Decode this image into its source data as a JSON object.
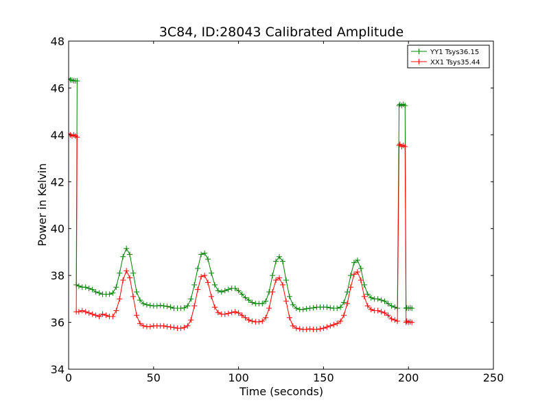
{
  "chart_data": {
    "type": "line",
    "title": "3C84, ID:28043 Calibrated Amplitude",
    "xlabel": "Time (seconds)",
    "ylabel": "Power in Kelvin",
    "xlim": [
      0,
      250
    ],
    "ylim": [
      34,
      48
    ],
    "xticks": [
      0,
      50,
      100,
      150,
      200,
      250
    ],
    "yticks": [
      34,
      36,
      38,
      40,
      42,
      44,
      46,
      48
    ],
    "grid": false,
    "legend_position": "top-right",
    "marker": "+",
    "series": [
      {
        "name": "YY1 Tsys36.15",
        "color": "#008000",
        "points": [
          [
            0,
            46.4
          ],
          [
            1,
            46.35
          ],
          [
            2,
            46.33
          ],
          [
            3,
            46.31
          ],
          [
            4,
            46.3
          ],
          [
            5,
            46.3
          ],
          [
            4.5,
            37.6
          ],
          [
            6,
            37.55
          ],
          [
            8,
            37.5
          ],
          [
            10,
            37.5
          ],
          [
            12,
            37.45
          ],
          [
            14,
            37.4
          ],
          [
            16,
            37.3
          ],
          [
            18,
            37.25
          ],
          [
            20,
            37.2
          ],
          [
            22,
            37.2
          ],
          [
            24,
            37.2
          ],
          [
            26,
            37.25
          ],
          [
            28,
            37.5
          ],
          [
            30,
            38.1
          ],
          [
            32,
            38.8
          ],
          [
            34,
            39.15
          ],
          [
            36,
            38.9
          ],
          [
            38,
            38.1
          ],
          [
            40,
            37.3
          ],
          [
            42,
            36.95
          ],
          [
            44,
            36.8
          ],
          [
            46,
            36.75
          ],
          [
            48,
            36.72
          ],
          [
            50,
            36.7
          ],
          [
            52,
            36.7
          ],
          [
            54,
            36.72
          ],
          [
            56,
            36.7
          ],
          [
            58,
            36.68
          ],
          [
            60,
            36.65
          ],
          [
            62,
            36.6
          ],
          [
            64,
            36.6
          ],
          [
            66,
            36.6
          ],
          [
            68,
            36.62
          ],
          [
            70,
            36.7
          ],
          [
            72,
            37.0
          ],
          [
            74,
            37.6
          ],
          [
            76,
            38.3
          ],
          [
            78,
            38.9
          ],
          [
            80,
            38.95
          ],
          [
            82,
            38.7
          ],
          [
            84,
            38.1
          ],
          [
            86,
            37.6
          ],
          [
            88,
            37.35
          ],
          [
            90,
            37.3
          ],
          [
            92,
            37.35
          ],
          [
            94,
            37.4
          ],
          [
            96,
            37.45
          ],
          [
            98,
            37.45
          ],
          [
            100,
            37.35
          ],
          [
            102,
            37.2
          ],
          [
            104,
            37.05
          ],
          [
            106,
            36.95
          ],
          [
            108,
            36.85
          ],
          [
            110,
            36.8
          ],
          [
            112,
            36.8
          ],
          [
            114,
            36.8
          ],
          [
            116,
            36.9
          ],
          [
            118,
            37.3
          ],
          [
            120,
            38.0
          ],
          [
            122,
            38.6
          ],
          [
            124,
            38.8
          ],
          [
            126,
            38.6
          ],
          [
            128,
            37.8
          ],
          [
            130,
            37.1
          ],
          [
            132,
            36.75
          ],
          [
            134,
            36.6
          ],
          [
            136,
            36.55
          ],
          [
            138,
            36.55
          ],
          [
            140,
            36.58
          ],
          [
            142,
            36.6
          ],
          [
            144,
            36.62
          ],
          [
            146,
            36.65
          ],
          [
            148,
            36.65
          ],
          [
            150,
            36.65
          ],
          [
            152,
            36.65
          ],
          [
            154,
            36.62
          ],
          [
            156,
            36.6
          ],
          [
            158,
            36.6
          ],
          [
            160,
            36.65
          ],
          [
            162,
            36.85
          ],
          [
            164,
            37.3
          ],
          [
            166,
            38.0
          ],
          [
            168,
            38.55
          ],
          [
            170,
            38.65
          ],
          [
            172,
            38.3
          ],
          [
            174,
            37.6
          ],
          [
            176,
            37.2
          ],
          [
            178,
            37.05
          ],
          [
            180,
            37.0
          ],
          [
            182,
            37.0
          ],
          [
            184,
            36.95
          ],
          [
            186,
            36.9
          ],
          [
            188,
            36.8
          ],
          [
            190,
            36.7
          ],
          [
            192,
            36.65
          ],
          [
            193.5,
            36.6
          ],
          [
            194.5,
            45.25
          ],
          [
            195,
            45.3
          ],
          [
            196,
            45.25
          ],
          [
            197,
            45.3
          ],
          [
            198,
            45.25
          ],
          [
            198.6,
            36.6
          ],
          [
            199,
            36.62
          ],
          [
            200,
            36.6
          ],
          [
            201,
            36.62
          ],
          [
            202,
            36.6
          ]
        ]
      },
      {
        "name": "XX1 Tsys35.44",
        "color": "#ff0000",
        "points": [
          [
            0,
            44.05
          ],
          [
            1,
            44.0
          ],
          [
            2,
            43.95
          ],
          [
            3,
            44.0
          ],
          [
            4,
            43.95
          ],
          [
            5,
            43.9
          ],
          [
            4.5,
            36.45
          ],
          [
            6,
            36.45
          ],
          [
            8,
            36.5
          ],
          [
            10,
            36.45
          ],
          [
            12,
            36.4
          ],
          [
            14,
            36.35
          ],
          [
            16,
            36.3
          ],
          [
            18,
            36.25
          ],
          [
            20,
            36.35
          ],
          [
            22,
            36.3
          ],
          [
            24,
            36.25
          ],
          [
            26,
            36.25
          ],
          [
            28,
            36.5
          ],
          [
            30,
            37.0
          ],
          [
            32,
            37.8
          ],
          [
            34,
            38.2
          ],
          [
            36,
            37.9
          ],
          [
            38,
            37.1
          ],
          [
            40,
            36.3
          ],
          [
            42,
            35.95
          ],
          [
            44,
            35.85
          ],
          [
            46,
            35.82
          ],
          [
            48,
            35.82
          ],
          [
            50,
            35.85
          ],
          [
            52,
            35.85
          ],
          [
            54,
            35.85
          ],
          [
            56,
            35.85
          ],
          [
            58,
            35.82
          ],
          [
            60,
            35.8
          ],
          [
            62,
            35.78
          ],
          [
            64,
            35.75
          ],
          [
            66,
            35.75
          ],
          [
            68,
            35.78
          ],
          [
            70,
            35.85
          ],
          [
            72,
            36.1
          ],
          [
            74,
            36.7
          ],
          [
            76,
            37.4
          ],
          [
            78,
            37.95
          ],
          [
            80,
            38.0
          ],
          [
            82,
            37.7
          ],
          [
            84,
            37.1
          ],
          [
            86,
            36.65
          ],
          [
            88,
            36.42
          ],
          [
            90,
            36.35
          ],
          [
            92,
            36.35
          ],
          [
            94,
            36.38
          ],
          [
            96,
            36.42
          ],
          [
            98,
            36.45
          ],
          [
            100,
            36.4
          ],
          [
            102,
            36.3
          ],
          [
            104,
            36.2
          ],
          [
            106,
            36.1
          ],
          [
            108,
            36.05
          ],
          [
            110,
            36.02
          ],
          [
            112,
            36.02
          ],
          [
            114,
            36.05
          ],
          [
            116,
            36.2
          ],
          [
            118,
            36.6
          ],
          [
            120,
            37.3
          ],
          [
            122,
            37.8
          ],
          [
            124,
            37.9
          ],
          [
            126,
            37.6
          ],
          [
            128,
            36.9
          ],
          [
            130,
            36.2
          ],
          [
            132,
            35.85
          ],
          [
            134,
            35.75
          ],
          [
            136,
            35.72
          ],
          [
            138,
            35.7
          ],
          [
            140,
            35.7
          ],
          [
            142,
            35.72
          ],
          [
            144,
            35.7
          ],
          [
            146,
            35.7
          ],
          [
            148,
            35.72
          ],
          [
            150,
            35.75
          ],
          [
            152,
            35.8
          ],
          [
            154,
            35.85
          ],
          [
            156,
            35.9
          ],
          [
            158,
            35.95
          ],
          [
            160,
            36.05
          ],
          [
            162,
            36.3
          ],
          [
            164,
            36.8
          ],
          [
            166,
            37.5
          ],
          [
            168,
            38.05
          ],
          [
            170,
            38.15
          ],
          [
            172,
            37.8
          ],
          [
            174,
            37.1
          ],
          [
            176,
            36.7
          ],
          [
            178,
            36.55
          ],
          [
            180,
            36.5
          ],
          [
            182,
            36.5
          ],
          [
            184,
            36.45
          ],
          [
            186,
            36.4
          ],
          [
            188,
            36.3
          ],
          [
            190,
            36.15
          ],
          [
            192,
            36.1
          ],
          [
            193.5,
            36.05
          ],
          [
            194.5,
            43.55
          ],
          [
            195,
            43.6
          ],
          [
            196,
            43.5
          ],
          [
            197,
            43.55
          ],
          [
            198,
            43.5
          ],
          [
            198.6,
            36.0
          ],
          [
            199,
            36.05
          ],
          [
            200,
            36.0
          ],
          [
            201,
            36.02
          ],
          [
            202,
            36.0
          ]
        ]
      }
    ]
  }
}
